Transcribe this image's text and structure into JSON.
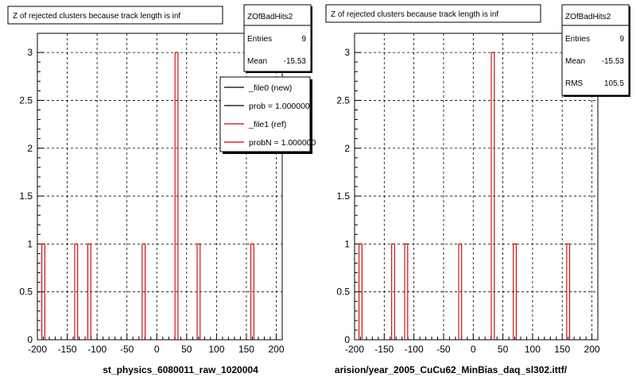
{
  "page": {
    "footer_caption": ""
  },
  "chart_data": [
    {
      "type": "bar",
      "title": "Z of rejected clusters  because track length is inf",
      "xlabel": "st_physics_6080011_raw_1020004",
      "ylabel": "",
      "xlim": [
        -200,
        210
      ],
      "ylim": [
        0,
        3.2
      ],
      "x_ticks": [
        "-200",
        "-150",
        "-100",
        "-50",
        "0",
        "50",
        "100",
        "150",
        "200"
      ],
      "y_ticks": [
        "0",
        "0.5",
        "1",
        "1.5",
        "2",
        "2.5",
        "3"
      ],
      "grid": true,
      "stats": {
        "title": "ZOfBadHits2",
        "rows": [
          {
            "label": "Entries",
            "value": "9"
          },
          {
            "label": "Mean",
            "value": "-15.53"
          }
        ]
      },
      "legend": {
        "position": "top-right",
        "entries": [
          {
            "label": "_file0 (new)",
            "color": "#000000"
          },
          {
            "label": "prob = 1.000000",
            "color": "#000000"
          },
          {
            "label": "_file1 (ref)",
            "color": "#cc0000"
          },
          {
            "label": "probN = 1.000000",
            "color": "#cc0000"
          }
        ]
      },
      "bins": [
        {
          "x": -190,
          "value": 1
        },
        {
          "x": -135,
          "value": 1
        },
        {
          "x": -113,
          "value": 1
        },
        {
          "x": -22,
          "value": 1
        },
        {
          "x": 33,
          "value": 3
        },
        {
          "x": 70,
          "value": 1
        },
        {
          "x": 160,
          "value": 1
        }
      ],
      "colors": {
        "new": "#000000",
        "ref": "#cc0000"
      }
    },
    {
      "type": "bar",
      "title": "Z of rejected clusters  because track length is inf",
      "xlabel": "arision/year_2005_CuCu62_MinBias_daq_sl302.ittf/",
      "ylabel": "",
      "xlim": [
        -200,
        210
      ],
      "ylim": [
        0,
        3.2
      ],
      "x_ticks": [
        "-200",
        "-150",
        "-100",
        "-50",
        "0",
        "50",
        "100",
        "150",
        "200"
      ],
      "y_ticks": [
        "0",
        "0.5",
        "1",
        "1.5",
        "2",
        "2.5",
        "3"
      ],
      "grid": true,
      "stats": {
        "title": "ZOfBadHits2",
        "rows": [
          {
            "label": "Entries",
            "value": "9"
          },
          {
            "label": "Mean",
            "value": "-15.53"
          },
          {
            "label": "RMS",
            "value": "105.5"
          }
        ]
      },
      "bins": [
        {
          "x": -190,
          "value": 1
        },
        {
          "x": -135,
          "value": 1
        },
        {
          "x": -113,
          "value": 1
        },
        {
          "x": -22,
          "value": 1
        },
        {
          "x": 33,
          "value": 3
        },
        {
          "x": 70,
          "value": 1
        },
        {
          "x": 160,
          "value": 1
        }
      ],
      "colors": {
        "new": "#000000",
        "ref": "#cc0000"
      }
    }
  ]
}
